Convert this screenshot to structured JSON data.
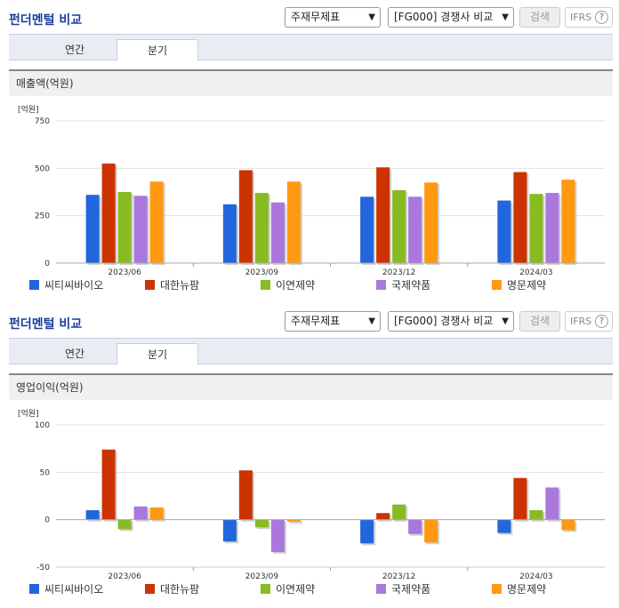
{
  "panels": [
    {
      "title": "펀더멘털 비교",
      "statement_select": "주재무제표",
      "group_select": "[FG000] 경쟁사 비교",
      "search_label": "검색",
      "ifrs_label": "IFRS",
      "help_glyph": "?",
      "tabs": [
        {
          "label": "연간",
          "active": false
        },
        {
          "label": "분기",
          "active": true
        }
      ],
      "metric_label": "매출액(억원)"
    },
    {
      "title": "펀더멘털 비교",
      "statement_select": "주재무제표",
      "group_select": "[FG000] 경쟁사 비교",
      "search_label": "검색",
      "ifrs_label": "IFRS",
      "help_glyph": "?",
      "tabs": [
        {
          "label": "연간",
          "active": false
        },
        {
          "label": "분기",
          "active": true
        }
      ],
      "metric_label": "영업이익(억원)"
    }
  ],
  "chart_data": [
    {
      "type": "bar",
      "unit_label": "[억원]",
      "categories": [
        "2023/06",
        "2023/09",
        "2023/12",
        "2024/03"
      ],
      "ylim": [
        0,
        750
      ],
      "yticks": [
        0,
        250,
        500,
        750
      ],
      "series": [
        {
          "name": "씨티씨바이오",
          "color": "#2266dd",
          "values": [
            360,
            310,
            350,
            330
          ]
        },
        {
          "name": "대한뉴팜",
          "color": "#cc3300",
          "values": [
            525,
            490,
            505,
            480
          ]
        },
        {
          "name": "이연제약",
          "color": "#88bb22",
          "values": [
            375,
            370,
            385,
            365
          ]
        },
        {
          "name": "국제약품",
          "color": "#aa77dd",
          "values": [
            355,
            320,
            350,
            370
          ]
        },
        {
          "name": "명문제약",
          "color": "#ff9911",
          "values": [
            430,
            430,
            425,
            440
          ]
        }
      ]
    },
    {
      "type": "bar",
      "unit_label": "[억원]",
      "categories": [
        "2023/06",
        "2023/09",
        "2023/12",
        "2024/03"
      ],
      "ylim": [
        -50,
        100
      ],
      "yticks": [
        -50,
        0,
        50,
        100
      ],
      "series": [
        {
          "name": "씨티씨바이오",
          "color": "#2266dd",
          "values": [
            10,
            -23,
            -25,
            -14
          ]
        },
        {
          "name": "대한뉴팜",
          "color": "#cc3300",
          "values": [
            74,
            52,
            7,
            44
          ]
        },
        {
          "name": "이연제약",
          "color": "#88bb22",
          "values": [
            -10,
            -8,
            16,
            10
          ]
        },
        {
          "name": "국제약품",
          "color": "#aa77dd",
          "values": [
            14,
            -34,
            -15,
            34
          ]
        },
        {
          "name": "명문제약",
          "color": "#ff9911",
          "values": [
            13,
            -2,
            -24,
            -11
          ]
        }
      ]
    }
  ]
}
